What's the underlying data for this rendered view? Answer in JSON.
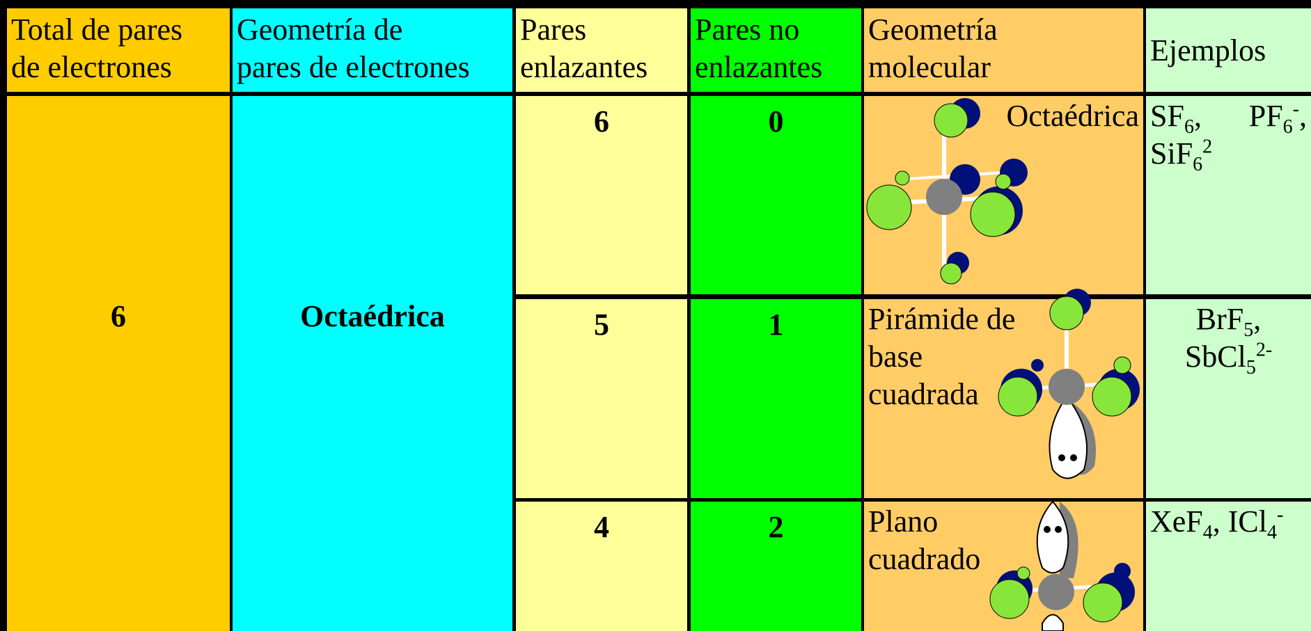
{
  "table": {
    "header": [
      [
        "Total de pares",
        "de electrones"
      ],
      [
        "Geometría de",
        "pares de electrones"
      ],
      [
        "Pares",
        "enlazantes"
      ],
      [
        "Pares no",
        "enlazantes"
      ],
      [
        "Geometría",
        "molecular"
      ],
      [
        "Ejemplos"
      ]
    ],
    "total": "6",
    "geometry": "Octaédrica",
    "rows": [
      {
        "bonding": "6",
        "nonbonding": "0",
        "molecular": [
          "Octaédrica"
        ],
        "examples": [
          {
            "base": "SF",
            "sub": "6",
            "tail": ","
          },
          {
            "base": "PF",
            "sub": "6",
            "sup": "-",
            "tail": ","
          },
          {
            "base": "SiF",
            "sub": "6",
            "sup": "2"
          }
        ]
      },
      {
        "bonding": "5",
        "nonbonding": "1",
        "molecular": [
          "Pirámide de",
          "base",
          "cuadrada"
        ],
        "examples": [
          {
            "base": "BrF",
            "sub": "5",
            "tail": ","
          },
          {
            "base": "SbCl",
            "sub": "5",
            "sup": "2-"
          }
        ]
      },
      {
        "bonding": "4",
        "nonbonding": "2",
        "molecular": [
          "Plano",
          "cuadrado"
        ],
        "examples": [
          {
            "base": "XeF",
            "sub": "4",
            "tail": ","
          },
          {
            "base": "ICl",
            "sub": "4",
            "sup": "-"
          }
        ]
      }
    ]
  }
}
